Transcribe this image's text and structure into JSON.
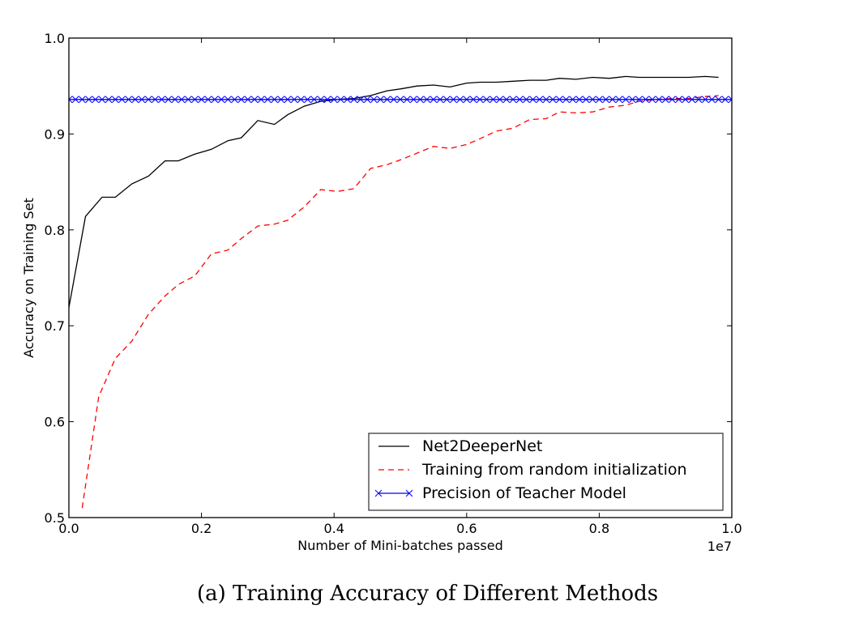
{
  "caption": "(a) Training Accuracy of Different Methods",
  "chart_data": {
    "type": "line",
    "xlabel": "Number of Mini-batches passed",
    "ylabel": "Accuracy on Training Set",
    "x_offset_label": "1e7",
    "xlim": [
      0.0,
      1.0
    ],
    "ylim": [
      0.5,
      1.0
    ],
    "xticks": [
      "0.0",
      "0.2",
      "0.4",
      "0.6",
      "0.8",
      "1.0"
    ],
    "yticks": [
      "0.5",
      "0.6",
      "0.7",
      "0.8",
      "0.9",
      "1.0"
    ],
    "grid": false,
    "legend_position": "lower-right",
    "series": [
      {
        "name": "Net2DeeperNet",
        "color": "#000000",
        "style": "solid",
        "marker": "none",
        "x": [
          0.0,
          0.025,
          0.05,
          0.07,
          0.095,
          0.12,
          0.145,
          0.165,
          0.19,
          0.215,
          0.24,
          0.26,
          0.285,
          0.31,
          0.33,
          0.355,
          0.38,
          0.405,
          0.43,
          0.455,
          0.48,
          0.5,
          0.525,
          0.55,
          0.575,
          0.6,
          0.62,
          0.645,
          0.67,
          0.695,
          0.72,
          0.74,
          0.765,
          0.79,
          0.815,
          0.84,
          0.86,
          0.885,
          0.91,
          0.935,
          0.96,
          0.98
        ],
        "values": [
          0.719,
          0.814,
          0.834,
          0.834,
          0.848,
          0.856,
          0.872,
          0.872,
          0.879,
          0.884,
          0.893,
          0.896,
          0.914,
          0.91,
          0.92,
          0.929,
          0.934,
          0.936,
          0.937,
          0.94,
          0.945,
          0.947,
          0.95,
          0.951,
          0.949,
          0.953,
          0.954,
          0.954,
          0.955,
          0.956,
          0.956,
          0.958,
          0.957,
          0.959,
          0.958,
          0.96,
          0.959,
          0.959,
          0.959,
          0.959,
          0.96,
          0.959
        ]
      },
      {
        "name": "Training from random initialization",
        "color": "#ff0000",
        "style": "dashed",
        "marker": "none",
        "x": [
          0.02,
          0.045,
          0.07,
          0.095,
          0.12,
          0.145,
          0.165,
          0.19,
          0.215,
          0.24,
          0.26,
          0.285,
          0.31,
          0.33,
          0.355,
          0.38,
          0.405,
          0.43,
          0.455,
          0.48,
          0.5,
          0.525,
          0.55,
          0.575,
          0.6,
          0.62,
          0.645,
          0.67,
          0.695,
          0.72,
          0.74,
          0.765,
          0.79,
          0.815,
          0.84,
          0.86,
          0.885,
          0.91,
          0.935,
          0.96,
          0.98
        ],
        "values": [
          0.51,
          0.626,
          0.666,
          0.684,
          0.712,
          0.731,
          0.743,
          0.752,
          0.775,
          0.779,
          0.791,
          0.804,
          0.806,
          0.81,
          0.824,
          0.842,
          0.84,
          0.843,
          0.864,
          0.868,
          0.873,
          0.88,
          0.887,
          0.885,
          0.889,
          0.895,
          0.903,
          0.906,
          0.915,
          0.916,
          0.923,
          0.922,
          0.923,
          0.928,
          0.93,
          0.934,
          0.936,
          0.937,
          0.937,
          0.939,
          0.94
        ]
      },
      {
        "name": "Precision of Teacher Model",
        "color": "#0000ff",
        "style": "solid",
        "marker": "x",
        "x": [
          0.0,
          1.0
        ],
        "values": [
          0.936,
          0.936
        ]
      }
    ]
  }
}
